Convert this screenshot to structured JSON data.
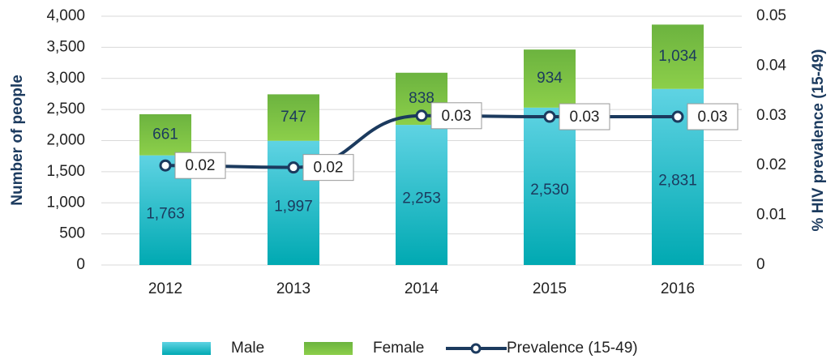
{
  "chart_data": {
    "type": "bar",
    "categories": [
      "2012",
      "2013",
      "2014",
      "2015",
      "2016"
    ],
    "stacked": true,
    "series": [
      {
        "name": "Male",
        "color": "#2fc0d0",
        "values": [
          1763,
          1997,
          2253,
          2530,
          2831
        ],
        "value_labels": [
          "1,763",
          "1,997",
          "2,253",
          "2,530",
          "2,831"
        ]
      },
      {
        "name": "Female",
        "color": "#6cb33f",
        "values": [
          661,
          747,
          838,
          934,
          1034
        ],
        "value_labels": [
          "661",
          "747",
          "838",
          "934",
          "1,034"
        ]
      },
      {
        "name": "Prevalence (15-49)",
        "type": "line",
        "axis": "y2",
        "color": "#1b3a5e",
        "values": [
          0.02,
          0.0196,
          0.03,
          0.0298,
          0.0298
        ],
        "value_labels": [
          "0.02",
          "0.02",
          "0.03",
          "0.03",
          "0.03"
        ]
      }
    ],
    "ylabel": "Number of people",
    "y2label": "% HIV prevalence (15-49)",
    "ylim": [
      0,
      4000
    ],
    "yticks": [
      0,
      500,
      {
        "value": 1000,
        "label": "1,000"
      },
      {
        "value": 1500,
        "label": "1,500"
      },
      {
        "value": 2000,
        "label": "2,000"
      },
      {
        "value": 2500,
        "label": "2,500"
      },
      {
        "value": 3000,
        "label": "3,000"
      },
      {
        "value": 3500,
        "label": "3,500"
      },
      {
        "value": 4000,
        "label": "4,000"
      }
    ],
    "y2lim": [
      0,
      0.05
    ],
    "y2ticks": [
      0,
      0.01,
      0.02,
      0.03,
      0.04,
      0.05
    ],
    "grid": true,
    "legend": "bottom"
  }
}
